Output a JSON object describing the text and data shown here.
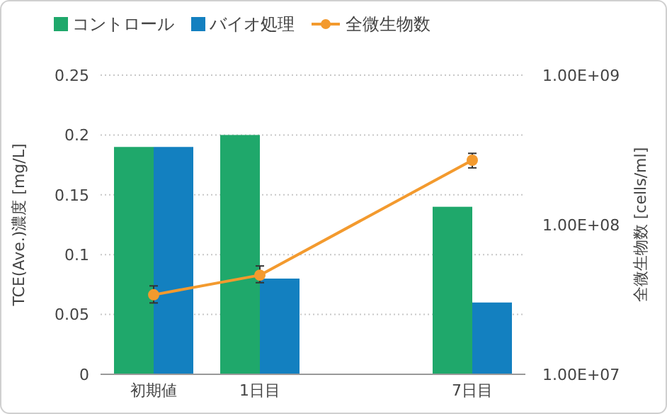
{
  "chart_data": {
    "type": "bar",
    "ylabel": "TCE(Ave.)濃度 [mg/L]",
    "y2label": "全微生物数 [cells/ml]",
    "categories": [
      "初期値",
      "1日目",
      null,
      "7日目"
    ],
    "series": [
      {
        "name": "コントロール",
        "color": "#1fa86b",
        "values": [
          0.19,
          0.2,
          null,
          0.14
        ]
      },
      {
        "name": "バイオ処理",
        "color": "#1380c0",
        "values": [
          0.19,
          0.08,
          null,
          0.06
        ]
      },
      {
        "name": "全微生物数",
        "type": "line",
        "axis": "y2",
        "color": "#f39a2e",
        "marker": "circle",
        "values": [
          34000000,
          46000000,
          null,
          270000000
        ],
        "errors": [
          [
            30000000,
            39000000
          ],
          [
            41000000,
            53000000
          ],
          null,
          [
            240000000,
            300000000
          ]
        ]
      }
    ],
    "ylim": [
      0,
      0.25
    ],
    "yticks": [
      0,
      0.05,
      0.1,
      0.15,
      0.2,
      0.25
    ],
    "y2lim": [
      10000000,
      1000000000
    ],
    "y2ticks": [
      {
        "value": 10000000,
        "label": "1.00E+07"
      },
      {
        "value": 100000000,
        "label": "1.00E+08"
      },
      {
        "value": 1000000000,
        "label": "1.00E+09"
      }
    ],
    "log": "y2",
    "grid": "y",
    "legend": "top left"
  }
}
